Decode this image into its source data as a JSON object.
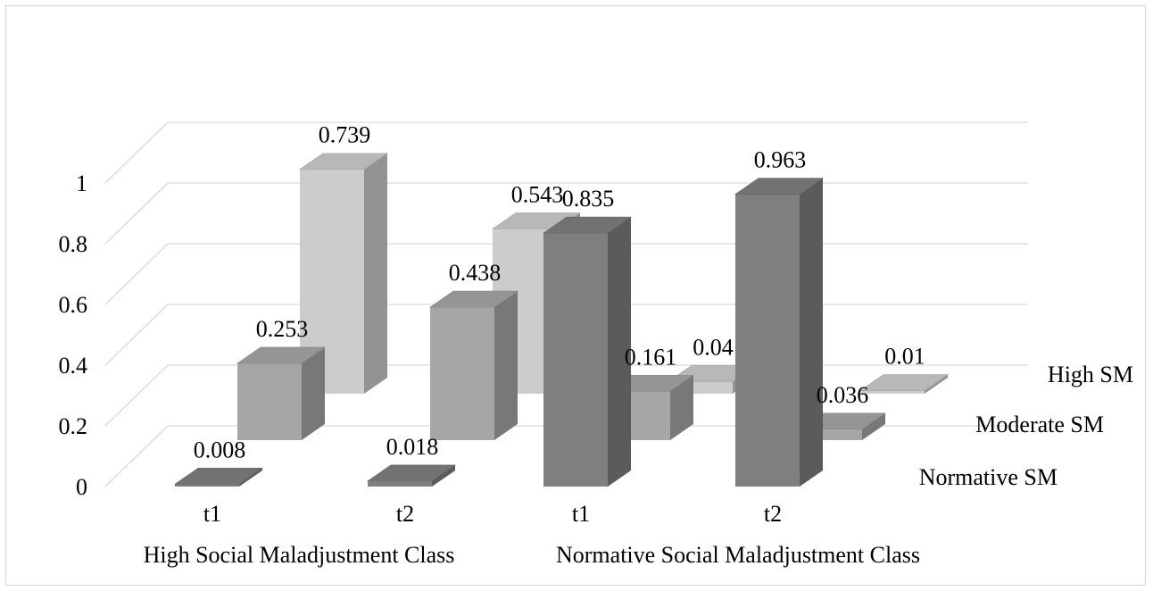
{
  "chart_data": {
    "type": "bar",
    "style": "3d-column",
    "ylim": [
      0,
      1
    ],
    "y_ticks": [
      "0",
      "0.2",
      "0.4",
      "0.6",
      "0.8",
      "1"
    ],
    "grid": true,
    "groups": [
      "High Social Maladjustment Class",
      "Normative Social Maladjustment Class"
    ],
    "categories": [
      "t1",
      "t2",
      "t1",
      "t2"
    ],
    "series": [
      {
        "name": "Normative SM",
        "color": "#7f7f7f",
        "values": [
          0.008,
          0.018,
          0.835,
          0.963
        ],
        "labels": [
          "0.008",
          "0.018",
          "0.835",
          "0.963"
        ]
      },
      {
        "name": "Moderate SM",
        "color": "#a6a6a6",
        "values": [
          0.253,
          0.438,
          0.161,
          0.036
        ],
        "labels": [
          "0.253",
          "0.438",
          "0.161",
          "0.036"
        ]
      },
      {
        "name": "High SM",
        "color": "#cccccc",
        "values": [
          0.739,
          0.543,
          0.04,
          0.01
        ],
        "labels": [
          "0.739",
          "0.543",
          "0.04",
          "0.01"
        ]
      }
    ],
    "legend_position": "right"
  }
}
